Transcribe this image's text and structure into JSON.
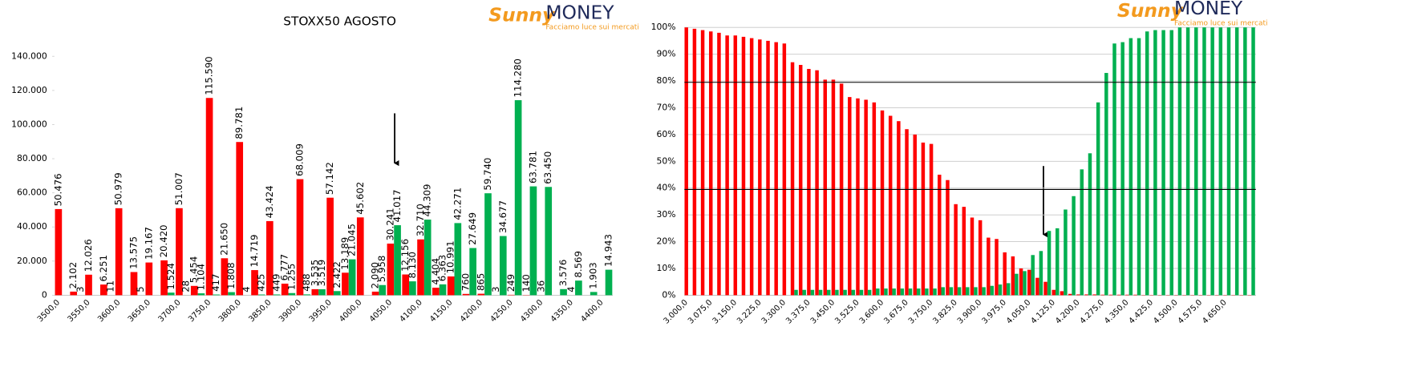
{
  "logo": {
    "brand": "Sunny",
    "name": "MONEY",
    "tagline": "Facciamo luce sui mercati"
  },
  "chart_data": [
    {
      "type": "bar",
      "title": "STOXX50 AGOSTO",
      "categories": [
        "3500,0",
        null,
        "3550,0",
        null,
        "3600,0",
        null,
        "3650,0",
        null,
        "3700,0",
        null,
        "3750,0",
        null,
        "3800,0",
        null,
        "3850,0",
        null,
        "3900,0",
        null,
        "3950,0",
        null,
        "4000,0",
        null,
        "4050,0",
        null,
        "4100,0",
        null,
        "4150,0",
        null,
        "4200,0",
        null,
        "4250,0",
        null,
        "4300,0",
        null,
        "4350,0",
        null,
        "4400,0"
      ],
      "series": [
        {
          "color": "#ff0000",
          "values": [
            50476,
            2102,
            12026,
            6251,
            50979,
            13575,
            19167,
            20420,
            51007,
            5454,
            115590,
            21650,
            89781,
            14719,
            43424,
            6777,
            68009,
            3535,
            57142,
            13189,
            45602,
            2090,
            30241,
            12156,
            32710,
            4404,
            10991,
            760,
            865,
            3,
            249,
            140,
            36,
            null,
            4,
            null,
            null
          ],
          "value_labels": [
            "50.476",
            "2.102",
            "12.026",
            "6.251",
            "50.979",
            "13.575",
            "19.167",
            "20.420",
            "51.007",
            "5.454",
            "115.590",
            "21.650",
            "89.781",
            "14.719",
            "43.424",
            "6.777",
            "68.009",
            "3.535",
            "57.142",
            "13.189",
            "45.602",
            "2.090",
            "30.241",
            "12.156",
            "32.710",
            "4.404",
            "10.991",
            "760",
            "865",
            "3",
            "249",
            "140",
            "36",
            null,
            "4",
            null,
            null
          ]
        },
        {
          "color": "#00b050",
          "values": [
            null,
            3,
            null,
            11,
            null,
            5,
            null,
            1524,
            28,
            1104,
            417,
            1808,
            4,
            425,
            449,
            1255,
            488,
            3519,
            2422,
            21045,
            null,
            5958,
            41017,
            8130,
            44309,
            6363,
            42271,
            27649,
            59740,
            34677,
            114280,
            63781,
            63450,
            3576,
            8569,
            1903,
            14943
          ],
          "value_labels": [
            null,
            "3",
            null,
            "11",
            null,
            "5",
            null,
            "1.524",
            "28",
            "1.104",
            "417",
            "1.808",
            "4",
            "425",
            "449",
            "1.255",
            "488",
            "3.519",
            "2.422",
            "21.045",
            null,
            "5.958",
            "41.017",
            "8.130",
            "44.309",
            "6.363",
            "42.271",
            "27.649",
            "59.740",
            "34.677",
            "114.280",
            "63.781",
            "63.450",
            "3.576",
            "8.569",
            "1.903",
            "14.943"
          ]
        }
      ],
      "ylim": [
        0,
        140000
      ],
      "yticks": [
        0,
        {
          "value": 20000,
          "label": "20.000"
        },
        {
          "value": 40000,
          "label": "40.000"
        },
        {
          "value": 60000,
          "label": "60.000"
        },
        {
          "value": 80000,
          "label": "80.000"
        },
        {
          "value": 100000,
          "label": "100.000"
        },
        {
          "value": 120000,
          "label": "120.000"
        },
        {
          "value": 140000,
          "label": "140.000"
        }
      ],
      "grid": false
    },
    {
      "type": "bar",
      "categories": [
        "3.000,0",
        null,
        null,
        "3.075,0",
        null,
        null,
        "3.150,0",
        null,
        null,
        "3.225,0",
        null,
        null,
        "3.300,0",
        null,
        null,
        "3.375,0",
        null,
        null,
        "3.450,0",
        null,
        null,
        "3.525,0",
        null,
        null,
        "3.600,0",
        null,
        null,
        "3.675,0",
        null,
        null,
        "3.750,0",
        null,
        null,
        "3.825,0",
        null,
        null,
        "3.900,0",
        null,
        null,
        "3.975,0",
        null,
        null,
        "4.050,0",
        null,
        null,
        "4.125,0",
        null,
        null,
        "4.200,0",
        null,
        null,
        "4.275,0",
        null,
        null,
        "4.350,0",
        null,
        null,
        "4.425,0",
        null,
        null,
        "4.500,0",
        null,
        null,
        "4.575,0",
        null,
        null,
        "4.650,0",
        null,
        null,
        null
      ],
      "series": [
        {
          "color": "#ff0000",
          "values": [
            100,
            99.5,
            99,
            98.5,
            98,
            97,
            97,
            96.5,
            96,
            95.5,
            95,
            94.5,
            94,
            87,
            86,
            84.5,
            84,
            80.5,
            80.5,
            79,
            74,
            73.5,
            73,
            72,
            69,
            67,
            65,
            62,
            60,
            57,
            56.5,
            45,
            43,
            34,
            33,
            29,
            28,
            21.5,
            21,
            16,
            14.5,
            10,
            9.5,
            6.5,
            5,
            2,
            1.5,
            0.5,
            0.3,
            0.3,
            0.3,
            0.2,
            0.2,
            0.2,
            0.2,
            0.2,
            0.1,
            0.1,
            0.1,
            0.1,
            0.1,
            0.1,
            0.1,
            0.1,
            0.1,
            0.1,
            0.1,
            0.1,
            0.1,
            0.1
          ]
        },
        {
          "color": "#00b050",
          "values": [
            null,
            null,
            null,
            null,
            null,
            null,
            null,
            null,
            null,
            null,
            null,
            null,
            null,
            2,
            2,
            2,
            2,
            2,
            2,
            2,
            2,
            2,
            2,
            2.5,
            2.5,
            2.5,
            2.5,
            2.5,
            2.5,
            2.5,
            2.5,
            3,
            3,
            3,
            3,
            3,
            3,
            3.5,
            4,
            4.5,
            8,
            9,
            15,
            16.5,
            24,
            25,
            32,
            37,
            47,
            53,
            72,
            83,
            94,
            94.5,
            96,
            96,
            98.5,
            99,
            99,
            99,
            100,
            100,
            100,
            100,
            100,
            100,
            100,
            100,
            100,
            100
          ]
        }
      ],
      "ylim": [
        0,
        100
      ],
      "yticks": [
        {
          "value": 0,
          "label": "0%"
        },
        {
          "value": 10,
          "label": "10%"
        },
        {
          "value": 20,
          "label": "20%"
        },
        {
          "value": 30,
          "label": "30%"
        },
        {
          "value": 40,
          "label": "40%"
        },
        {
          "value": 50,
          "label": "50%"
        },
        {
          "value": 60,
          "label": "60%"
        },
        {
          "value": 70,
          "label": "70%"
        },
        {
          "value": 80,
          "label": "80%"
        },
        {
          "value": 90,
          "label": "90%"
        },
        {
          "value": 100,
          "label": "100%"
        }
      ],
      "grid": true,
      "ref_lines": [
        79.5,
        39.5
      ]
    }
  ]
}
